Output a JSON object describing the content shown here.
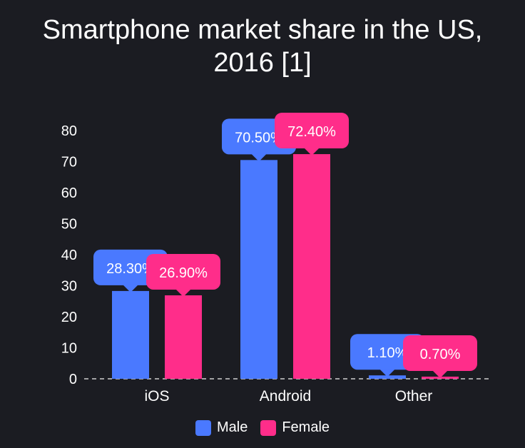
{
  "chart_data": {
    "type": "bar",
    "title_lines": [
      "Smartphone market share in the US,",
      "2016 [1]"
    ],
    "categories": [
      "iOS",
      "Android",
      "Other"
    ],
    "series": [
      {
        "name": "Male",
        "values": [
          28.3,
          70.5,
          1.1
        ],
        "labels": [
          "28.30%",
          "70.50%",
          "1.10%"
        ],
        "color": "#4a79ff"
      },
      {
        "name": "Female",
        "values": [
          26.9,
          72.4,
          0.7
        ],
        "labels": [
          "26.90%",
          "72.40%",
          "0.70%"
        ],
        "color": "#ff2d8a"
      }
    ],
    "ylim": [
      0,
      80
    ],
    "yticks": [
      "0",
      "10",
      "20",
      "30",
      "40",
      "50",
      "60",
      "70",
      "80"
    ],
    "grid": false,
    "legend_position": "bottom"
  }
}
